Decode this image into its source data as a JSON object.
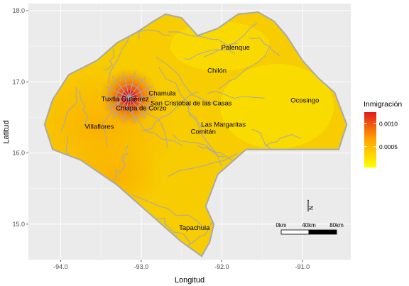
{
  "map": {
    "x_axis_title": "Longitud",
    "y_axis_title": "Latitud",
    "x_ticks": [
      {
        "value": -94.0,
        "label": "-94.0"
      },
      {
        "value": -93.0,
        "label": "-93.0"
      },
      {
        "value": -92.0,
        "label": "-92.0"
      },
      {
        "value": -91.0,
        "label": "-91.0"
      }
    ],
    "y_ticks": [
      {
        "value": 15.0,
        "label": "15.0"
      },
      {
        "value": 16.0,
        "label": "16.0"
      },
      {
        "value": 17.0,
        "label": "17.0"
      },
      {
        "value": 18.0,
        "label": "18.0"
      }
    ],
    "x_range": [
      -94.4,
      -90.4
    ],
    "y_range": [
      14.5,
      18.1
    ],
    "grid": "on",
    "places": [
      {
        "name": "Palenque",
        "lon": -91.83,
        "lat": 17.45
      },
      {
        "name": "Chilón",
        "lon": -92.06,
        "lat": 17.13
      },
      {
        "name": "Ocosingo",
        "lon": -90.97,
        "lat": 16.71
      },
      {
        "name": "Chamula",
        "lon": -92.74,
        "lat": 16.81
      },
      {
        "name": "Tuxtla Gutiérrez",
        "lon": -93.2,
        "lat": 16.73
      },
      {
        "name": "San Cristóbal de las Casas",
        "lon": -92.38,
        "lat": 16.67
      },
      {
        "name": "Chiapa de Corzo",
        "lon": -93.0,
        "lat": 16.6
      },
      {
        "name": "Las Margaritas",
        "lon": -91.98,
        "lat": 16.37
      },
      {
        "name": "Villaflores",
        "lon": -93.52,
        "lat": 16.34
      },
      {
        "name": "Comitán",
        "lon": -92.23,
        "lat": 16.27
      },
      {
        "name": "Tapachula",
        "lon": -92.34,
        "lat": 14.92
      }
    ],
    "hotspot": {
      "lon": -93.15,
      "lat": 16.78
    }
  },
  "legend": {
    "title": "Inmigración",
    "position": "right",
    "colors": [
      "#ffff00",
      "#ffa500",
      "#e41a1c"
    ],
    "range": [
      5e-05,
      0.00125
    ],
    "ticks": [
      {
        "value": 0.0005,
        "label": "0.0005"
      },
      {
        "value": 0.001,
        "label": "0.0010"
      }
    ]
  },
  "scale_bar": {
    "labels": [
      "0km",
      "40km",
      "80km"
    ],
    "north_label": "N",
    "north_symbol": "↑"
  },
  "colors": {
    "panel_background": "#ebebeb",
    "grid": "#ffffff",
    "border": "#a9a9a9",
    "low": "#ffff00",
    "mid": "#ffa500",
    "high": "#e41a1c"
  }
}
